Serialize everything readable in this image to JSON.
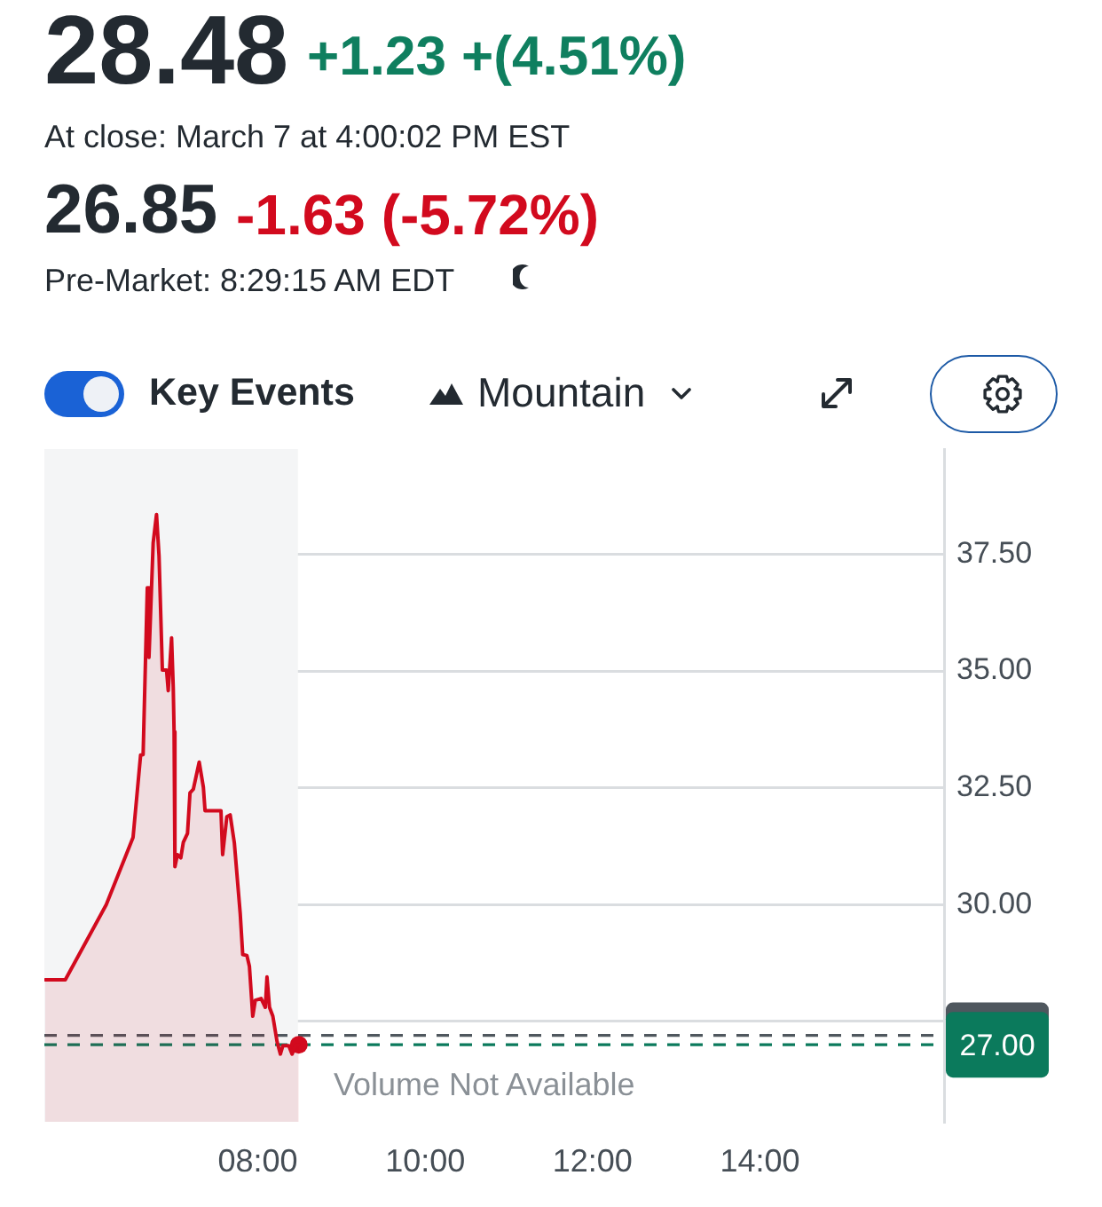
{
  "chart_data": {
    "type": "area",
    "title": "28.48",
    "subtitle": "At close: March 7 at 4:00:02 PM EST",
    "annotations": [
      "+1.23 +(4.51%)",
      "26.85",
      "-1.63 (-5.72%)",
      "Pre-Market: 8:29:15 AM EDT",
      "Key Events",
      "Mountain",
      "Volume Not Available"
    ],
    "series": [
      {
        "color": "#d20a1e",
        "x": [
          5.46,
          5.7,
          6.19,
          6.51,
          6.6,
          6.63,
          6.68,
          6.7,
          6.75,
          6.79,
          6.82,
          6.86,
          6.91,
          6.93,
          6.97,
          6.99,
          7.0,
          7.01,
          7.04,
          7.08,
          7.11,
          7.16,
          7.19,
          7.23,
          7.3,
          7.35,
          7.37,
          7.56,
          7.58,
          7.63,
          7.67,
          7.72,
          7.79,
          7.82,
          7.87,
          7.9,
          7.94,
          7.97,
          8.04,
          8.09,
          8.11,
          8.14,
          8.18,
          8.23,
          8.27,
          8.3,
          8.37,
          8.41,
          8.45,
          8.49
        ],
        "values": [
          28.39,
          28.39,
          30.0,
          31.44,
          33.2,
          33.21,
          36.78,
          35.29,
          37.74,
          38.35,
          37.47,
          35.02,
          35.02,
          34.58,
          35.71,
          34.65,
          33.7,
          30.81,
          31.07,
          31.0,
          31.33,
          31.52,
          32.39,
          32.47,
          33.05,
          32.51,
          32.01,
          32.01,
          31.07,
          31.88,
          31.92,
          31.32,
          29.81,
          28.93,
          28.91,
          28.68,
          27.61,
          27.95,
          27.99,
          27.8,
          28.45,
          27.8,
          27.61,
          27.07,
          26.8,
          26.98,
          26.98,
          26.8,
          26.98,
          27.0
        ]
      },
      {
        "type": "scatter",
        "color": "#d20a1e",
        "x": [
          8.49
        ],
        "values": [
          27.0
        ]
      }
    ],
    "xlim": [
      5.45,
      16.2
    ],
    "xticks": [
      {
        "value": 8,
        "label": "08:00"
      },
      {
        "value": 10,
        "label": "10:00"
      },
      {
        "value": 12,
        "label": "12:00"
      },
      {
        "value": 14,
        "label": "14:00"
      }
    ],
    "ylim": [
      25.35,
      39.75
    ],
    "yticks": [
      {
        "value": 27.5,
        "label": null
      },
      {
        "value": 30,
        "label": "30.00"
      },
      {
        "value": 32.5,
        "label": "32.50"
      },
      {
        "value": 35,
        "label": "35.00"
      },
      {
        "value": 37.5,
        "label": "37.50"
      }
    ],
    "grid": "y",
    "ref_lines": [
      {
        "axis": "y",
        "value": 27.2,
        "color": "#4f575e",
        "line_style": "dashed"
      },
      {
        "axis": "y",
        "value": 27.0,
        "label": "27.00",
        "color": "#0b7a5c",
        "line_style": "dashed"
      }
    ],
    "bands": [
      {
        "axis": "x",
        "from": 5.45,
        "to": 8.48,
        "color": "#f4f5f6"
      }
    ]
  }
}
